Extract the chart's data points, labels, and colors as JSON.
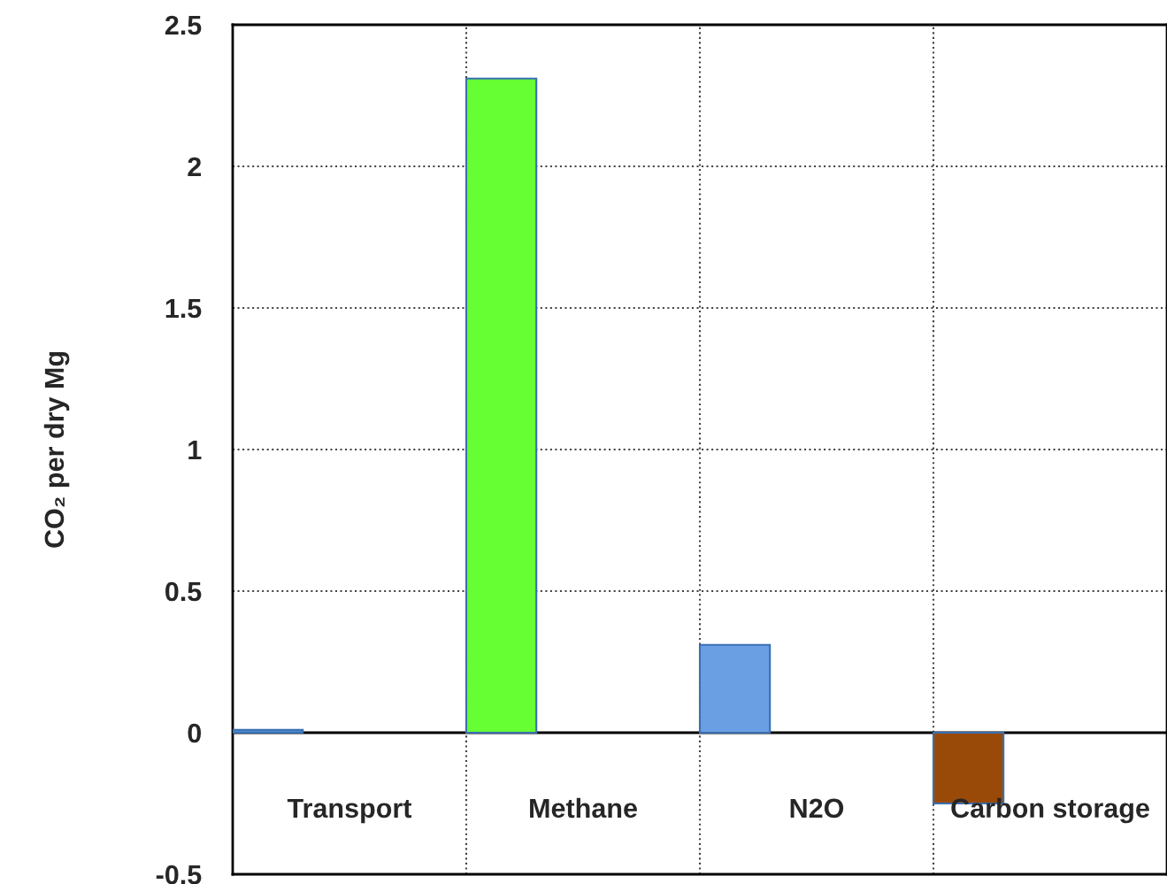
{
  "chart_data": {
    "type": "bar",
    "ylabel": "CO₂ per dry Mg",
    "categories": [
      "Transport",
      "Methane",
      "N2O",
      "Carbon storage"
    ],
    "values": [
      0.01,
      2.31,
      0.31,
      -0.25
    ],
    "colors": [
      "#4a8fd4",
      "#66ff33",
      "#6a9fe4",
      "#9a4a08"
    ],
    "ylim": [
      -0.5,
      2.5
    ],
    "yticks": [
      -0.5,
      0,
      0.5,
      1,
      1.5,
      2,
      2.5
    ],
    "ref_lines": [
      {
        "axis": "y",
        "value": 0,
        "color": "#000000",
        "line_style": "solid"
      }
    ],
    "grid": true
  }
}
